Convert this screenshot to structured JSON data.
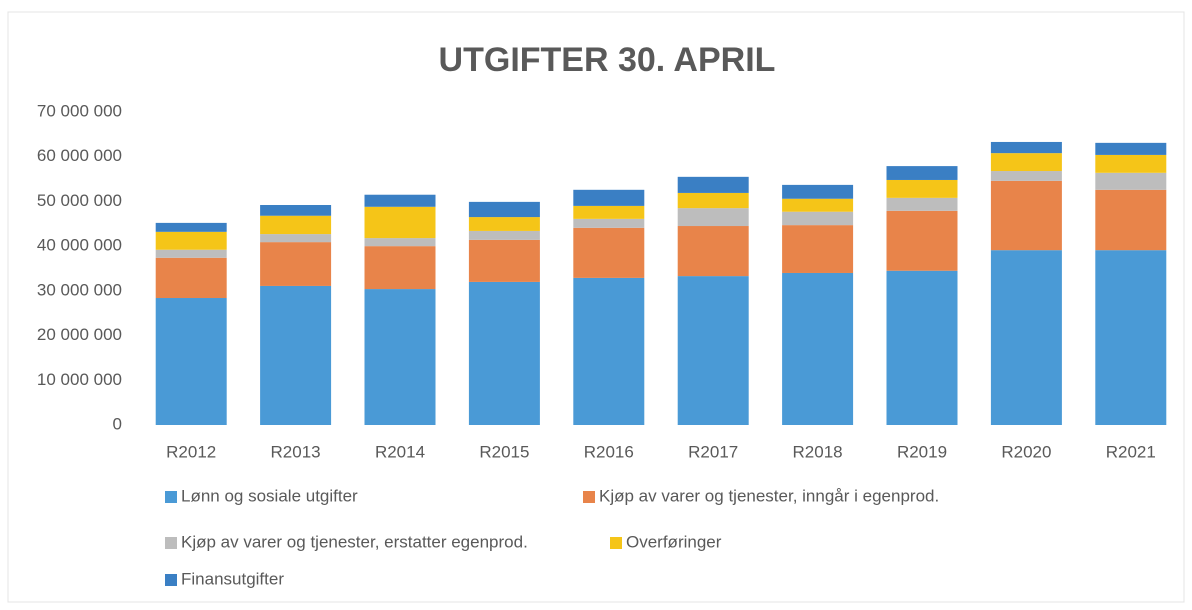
{
  "chart_data": {
    "type": "stacked_bar",
    "title": "UTGIFTER 30. APRIL",
    "categories": [
      "R2012",
      "R2013",
      "R2014",
      "R2015",
      "R2016",
      "R2017",
      "R2018",
      "R2019",
      "R2020",
      "R2021"
    ],
    "series": [
      {
        "name": "Lønn og sosiale utgifter",
        "color": "#4a9ad6",
        "values": [
          28400000,
          31100000,
          30400000,
          32000000,
          32900000,
          33300000,
          34000000,
          34500000,
          39100000,
          39100000
        ]
      },
      {
        "name": "Kjøp av varer og tjenester, inngår i egenprod.",
        "color": "#e8844a",
        "values": [
          9000000,
          9800000,
          9600000,
          9400000,
          11200000,
          11200000,
          10700000,
          13400000,
          15500000,
          13500000
        ]
      },
      {
        "name": "Kjøp av varer og tjenester, erstatter egenprod.",
        "color": "#bdbdbd",
        "values": [
          1800000,
          1800000,
          1800000,
          2000000,
          2000000,
          4000000,
          3000000,
          2900000,
          2200000,
          3800000
        ]
      },
      {
        "name": "Overføringer",
        "color": "#f5c518",
        "values": [
          4000000,
          4100000,
          7000000,
          3100000,
          2900000,
          3400000,
          2900000,
          4000000,
          4000000,
          4000000
        ]
      },
      {
        "name": "Finansutgifter",
        "color": "#3a7fc4",
        "values": [
          2000000,
          2400000,
          2700000,
          3400000,
          3600000,
          3600000,
          3100000,
          3100000,
          2500000,
          2700000
        ]
      }
    ],
    "ylim": [
      0,
      70000000
    ],
    "yticks": [
      0,
      {
        "value": 10000000,
        "label": "10 000 000"
      },
      {
        "value": 20000000,
        "label": "20 000 000"
      },
      {
        "value": 30000000,
        "label": "30 000 000"
      },
      {
        "value": 40000000,
        "label": "40 000 000"
      },
      {
        "value": 50000000,
        "label": "50 000 000"
      },
      {
        "value": 60000000,
        "label": "60 000 000"
      },
      {
        "value": 70000000,
        "label": "70 000 000"
      }
    ],
    "grid": false
  }
}
